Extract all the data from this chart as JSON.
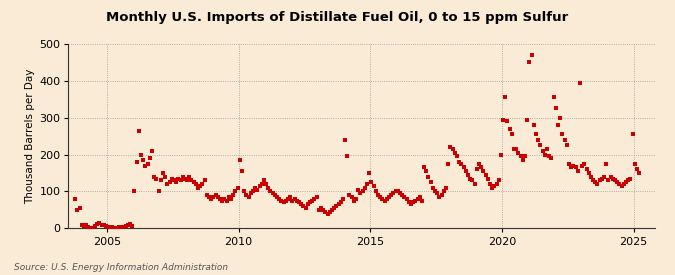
{
  "title": "Monthly U.S. Imports of Distillate Fuel Oil, 0 to 15 ppm Sulfur",
  "ylabel": "Thousand Barrels per Day",
  "source": "Source: U.S. Energy Information Administration",
  "background_color": "#faebd7",
  "marker_color": "#cc0000",
  "xlim": [
    2003.5,
    2025.8
  ],
  "ylim": [
    0,
    500
  ],
  "yticks": [
    0,
    100,
    200,
    300,
    400,
    500
  ],
  "xticks": [
    2005,
    2010,
    2015,
    2020,
    2025
  ],
  "data": {
    "2003-10": 80,
    "2003-11": 50,
    "2003-12": 55,
    "2004-01": 10,
    "2004-02": 5,
    "2004-03": 8,
    "2004-04": 3,
    "2004-05": 2,
    "2004-06": 1,
    "2004-07": 5,
    "2004-08": 12,
    "2004-09": 15,
    "2004-10": 10,
    "2004-11": 8,
    "2004-12": 5,
    "2005-01": 3,
    "2005-02": 2,
    "2005-03": 4,
    "2005-04": 2,
    "2005-05": 1,
    "2005-06": 3,
    "2005-07": 2,
    "2005-08": 4,
    "2005-09": 5,
    "2005-10": 10,
    "2005-11": 12,
    "2005-12": 5,
    "2006-01": 100,
    "2006-02": 180,
    "2006-03": 265,
    "2006-04": 200,
    "2006-05": 185,
    "2006-06": 170,
    "2006-07": 175,
    "2006-08": 190,
    "2006-09": 210,
    "2006-10": 140,
    "2006-11": 135,
    "2006-12": 100,
    "2007-01": 130,
    "2007-02": 150,
    "2007-03": 140,
    "2007-04": 120,
    "2007-05": 125,
    "2007-06": 135,
    "2007-07": 130,
    "2007-08": 125,
    "2007-09": 135,
    "2007-10": 130,
    "2007-11": 140,
    "2007-12": 135,
    "2008-01": 130,
    "2008-02": 140,
    "2008-03": 130,
    "2008-04": 125,
    "2008-05": 120,
    "2008-06": 110,
    "2008-07": 115,
    "2008-08": 120,
    "2008-09": 130,
    "2008-10": 90,
    "2008-11": 85,
    "2008-12": 80,
    "2009-01": 85,
    "2009-02": 90,
    "2009-03": 85,
    "2009-04": 80,
    "2009-05": 75,
    "2009-06": 80,
    "2009-07": 75,
    "2009-08": 85,
    "2009-09": 80,
    "2009-10": 90,
    "2009-11": 100,
    "2009-12": 110,
    "2010-01": 185,
    "2010-02": 155,
    "2010-03": 100,
    "2010-04": 90,
    "2010-05": 85,
    "2010-06": 95,
    "2010-07": 100,
    "2010-08": 110,
    "2010-09": 105,
    "2010-10": 115,
    "2010-11": 120,
    "2010-12": 130,
    "2011-01": 120,
    "2011-02": 110,
    "2011-03": 100,
    "2011-04": 95,
    "2011-05": 90,
    "2011-06": 85,
    "2011-07": 80,
    "2011-08": 75,
    "2011-09": 70,
    "2011-10": 75,
    "2011-11": 80,
    "2011-12": 85,
    "2012-01": 75,
    "2012-02": 80,
    "2012-03": 75,
    "2012-04": 70,
    "2012-05": 65,
    "2012-06": 60,
    "2012-07": 55,
    "2012-08": 65,
    "2012-09": 70,
    "2012-10": 75,
    "2012-11": 80,
    "2012-12": 85,
    "2013-01": 50,
    "2013-02": 55,
    "2013-03": 50,
    "2013-04": 45,
    "2013-05": 40,
    "2013-06": 45,
    "2013-07": 50,
    "2013-08": 55,
    "2013-09": 60,
    "2013-10": 65,
    "2013-11": 70,
    "2013-12": 80,
    "2014-01": 240,
    "2014-02": 195,
    "2014-03": 90,
    "2014-04": 85,
    "2014-05": 75,
    "2014-06": 80,
    "2014-07": 105,
    "2014-08": 95,
    "2014-09": 100,
    "2014-10": 110,
    "2014-11": 120,
    "2014-12": 150,
    "2015-01": 125,
    "2015-02": 115,
    "2015-03": 100,
    "2015-04": 90,
    "2015-05": 85,
    "2015-06": 80,
    "2015-07": 75,
    "2015-08": 80,
    "2015-09": 85,
    "2015-10": 90,
    "2015-11": 95,
    "2015-12": 100,
    "2016-01": 100,
    "2016-02": 95,
    "2016-03": 90,
    "2016-04": 85,
    "2016-05": 80,
    "2016-06": 70,
    "2016-07": 65,
    "2016-08": 70,
    "2016-09": 75,
    "2016-10": 80,
    "2016-11": 85,
    "2016-12": 75,
    "2017-01": 165,
    "2017-02": 155,
    "2017-03": 140,
    "2017-04": 125,
    "2017-05": 110,
    "2017-06": 100,
    "2017-07": 95,
    "2017-08": 85,
    "2017-09": 90,
    "2017-10": 100,
    "2017-11": 110,
    "2017-12": 175,
    "2018-01": 220,
    "2018-02": 215,
    "2018-03": 205,
    "2018-04": 195,
    "2018-05": 180,
    "2018-06": 175,
    "2018-07": 165,
    "2018-08": 155,
    "2018-09": 145,
    "2018-10": 135,
    "2018-11": 130,
    "2018-12": 120,
    "2019-01": 160,
    "2019-02": 175,
    "2019-03": 165,
    "2019-04": 155,
    "2019-05": 145,
    "2019-06": 135,
    "2019-07": 120,
    "2019-08": 110,
    "2019-09": 115,
    "2019-10": 120,
    "2019-11": 130,
    "2019-12": 200,
    "2020-01": 295,
    "2020-02": 355,
    "2020-03": 290,
    "2020-04": 270,
    "2020-05": 255,
    "2020-06": 215,
    "2020-07": 215,
    "2020-08": 205,
    "2020-09": 195,
    "2020-10": 185,
    "2020-11": 195,
    "2020-12": 295,
    "2021-01": 450,
    "2021-02": 470,
    "2021-03": 280,
    "2021-04": 255,
    "2021-05": 240,
    "2021-06": 225,
    "2021-07": 210,
    "2021-08": 200,
    "2021-09": 215,
    "2021-10": 195,
    "2021-11": 190,
    "2021-12": 355,
    "2022-01": 325,
    "2022-02": 280,
    "2022-03": 300,
    "2022-04": 255,
    "2022-05": 240,
    "2022-06": 225,
    "2022-07": 175,
    "2022-08": 165,
    "2022-09": 170,
    "2022-10": 165,
    "2022-11": 155,
    "2022-12": 395,
    "2023-01": 170,
    "2023-02": 175,
    "2023-03": 160,
    "2023-04": 150,
    "2023-05": 140,
    "2023-06": 130,
    "2023-07": 125,
    "2023-08": 120,
    "2023-09": 130,
    "2023-10": 135,
    "2023-11": 140,
    "2023-12": 175,
    "2024-01": 130,
    "2024-02": 140,
    "2024-03": 135,
    "2024-04": 130,
    "2024-05": 125,
    "2024-06": 120,
    "2024-07": 115,
    "2024-08": 120,
    "2024-09": 125,
    "2024-10": 130,
    "2024-11": 135,
    "2024-12": 255,
    "2025-01": 175,
    "2025-02": 160,
    "2025-03": 150
  }
}
